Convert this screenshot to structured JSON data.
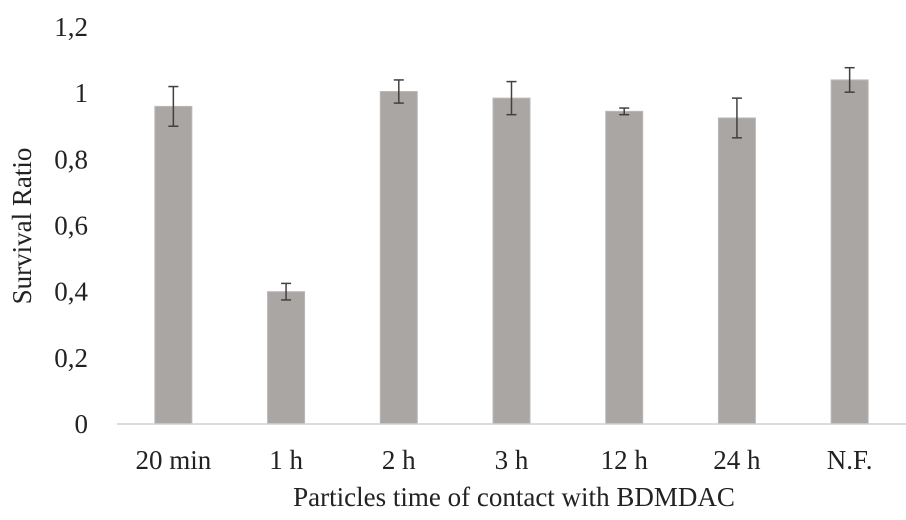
{
  "chart_data": {
    "type": "bar",
    "title": "",
    "xlabel": "Particles time of contact with BDMDAC",
    "ylabel": "Survival Ratio",
    "categories": [
      "20 min",
      "1 h",
      "2 h",
      "3 h",
      "12 h",
      "24 h",
      "N.F."
    ],
    "values": [
      0.96,
      0.4,
      1.005,
      0.985,
      0.945,
      0.925,
      1.04
    ],
    "errors": [
      0.06,
      0.025,
      0.035,
      0.05,
      0.01,
      0.06,
      0.037
    ],
    "ylim": [
      0,
      1.2
    ],
    "yticks": [
      "0",
      "0,2",
      "0,4",
      "0,6",
      "0,8",
      "1",
      "1,2"
    ],
    "ytick_values": [
      0,
      0.2,
      0.4,
      0.6,
      0.8,
      1.0,
      1.2
    ],
    "grid": false,
    "legend": "none",
    "colors": {
      "bar": "#aaa6a4",
      "bar_edge": "#bcb8b6",
      "error": "#404040",
      "axis": "#d0d0d0"
    }
  }
}
